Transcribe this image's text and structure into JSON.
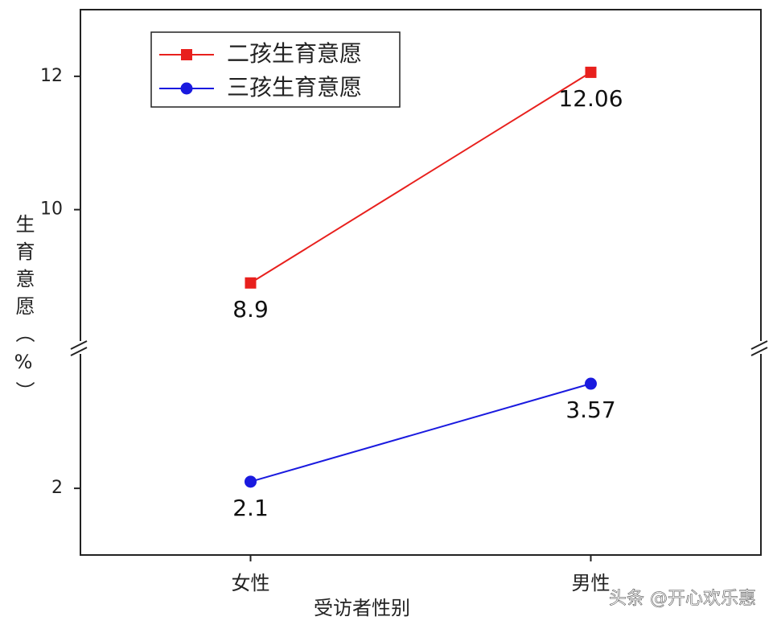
{
  "chart_data": {
    "type": "line",
    "categories": [
      "女性",
      "男性"
    ],
    "series": [
      {
        "name": "二孩生育意愿",
        "color": "#e8201d",
        "marker": "square",
        "values": [
          8.9,
          12.06
        ]
      },
      {
        "name": "三孩生育意愿",
        "color": "#1a1adf",
        "marker": "circle",
        "values": [
          2.1,
          3.57
        ]
      }
    ],
    "ylim": [
      1,
      13
    ],
    "ybreak": [
      4,
      8
    ],
    "yticks": [
      2,
      10,
      12
    ],
    "ylabel": "生育意愿（%）",
    "xlabel": "受访者性别",
    "legend": "top-left",
    "watermark": "头条 @开心欢乐惠"
  }
}
